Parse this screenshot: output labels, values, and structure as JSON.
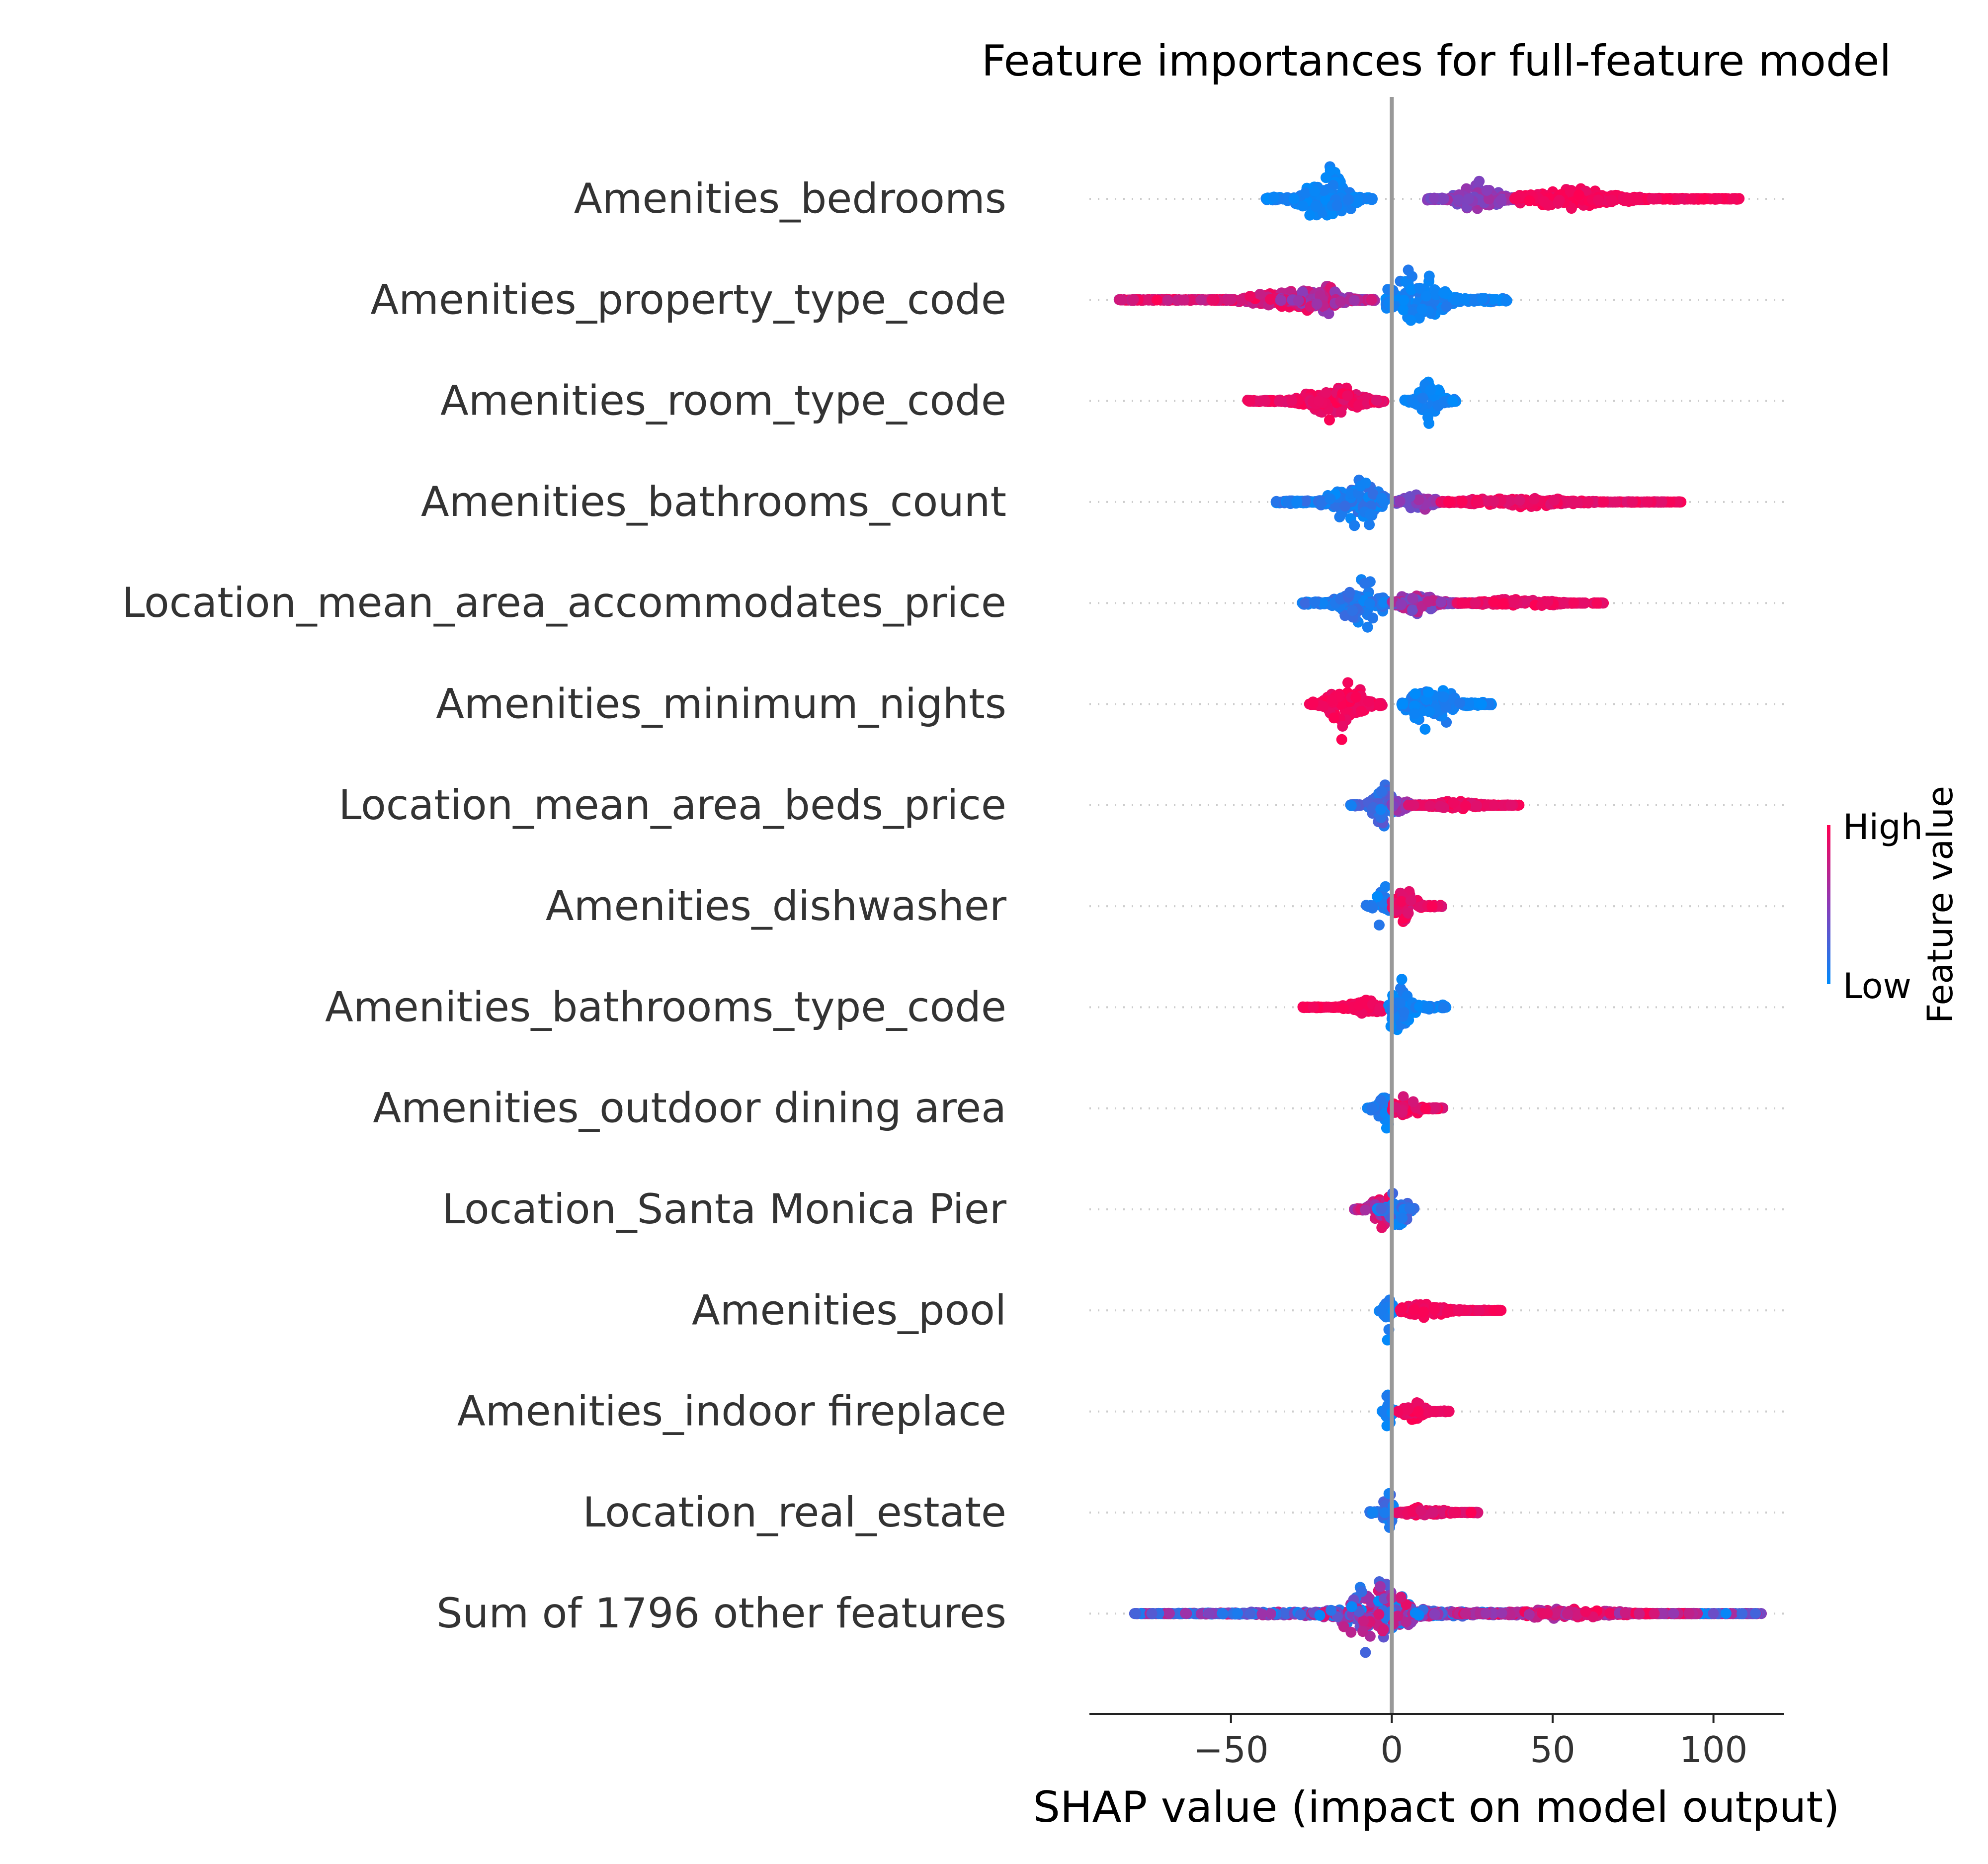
{
  "chart_data": {
    "type": "scatter",
    "subtype": "shap-beeswarm",
    "title": "Feature importances for full-feature model",
    "xlabel": "SHAP value (impact on model output)",
    "xlim": [
      -94,
      122
    ],
    "xticks": [
      {
        "value": -50,
        "label": "−50"
      },
      {
        "value": 0,
        "label": "0"
      },
      {
        "value": 50,
        "label": "50"
      },
      {
        "value": 100,
        "label": "100"
      }
    ],
    "zero_line": 0,
    "colorbar": {
      "title": "Feature value",
      "high_label": "High",
      "low_label": "Low",
      "low_color": "#008bfb",
      "mid_color": "#8b3bb8",
      "high_color": "#ff0052"
    },
    "features": [
      {
        "name": "Amenities_bedrooms",
        "clusters": [
          {
            "min": -40,
            "max": -6,
            "center": -20,
            "spread": 0.8,
            "value": 0.05,
            "vspread": 0.05
          },
          {
            "min": 11,
            "max": 40,
            "center": 27,
            "spread": 0.55,
            "value": 0.5,
            "vspread": 0.12
          },
          {
            "min": 38,
            "max": 108,
            "center": 55,
            "spread": 0.3,
            "value": 0.95,
            "vspread": 0.05
          }
        ]
      },
      {
        "name": "Amenities_property_type_code",
        "clusters": [
          {
            "min": -85,
            "max": -20,
            "center": -30,
            "spread": 0.3,
            "value": 0.85,
            "vspread": 0.15
          },
          {
            "min": -35,
            "max": -5,
            "center": -22,
            "spread": 0.55,
            "value": 0.7,
            "vspread": 0.25
          },
          {
            "min": -2,
            "max": 36,
            "center": 8,
            "spread": 0.9,
            "value": 0.06,
            "vspread": 0.06
          }
        ]
      },
      {
        "name": "Amenities_room_type_code",
        "clusters": [
          {
            "min": -45,
            "max": -2,
            "center": -18,
            "spread": 0.5,
            "value": 0.92,
            "vspread": 0.08
          },
          {
            "min": 4,
            "max": 20,
            "center": 12,
            "spread": 0.95,
            "value": 0.05,
            "vspread": 0.05
          }
        ]
      },
      {
        "name": "Amenities_bathrooms_count",
        "clusters": [
          {
            "min": -36,
            "max": -1,
            "center": -10,
            "spread": 0.85,
            "value": 0.1,
            "vspread": 0.1
          },
          {
            "min": 1,
            "max": 25,
            "center": 8,
            "spread": 0.3,
            "value": 0.5,
            "vspread": 0.15
          },
          {
            "min": 15,
            "max": 90,
            "center": 40,
            "spread": 0.15,
            "value": 0.92,
            "vspread": 0.08
          }
        ]
      },
      {
        "name": "Location_mean_area_accommodates_price",
        "clusters": [
          {
            "min": -28,
            "max": 0,
            "center": -10,
            "spread": 0.85,
            "value": 0.12,
            "vspread": 0.1
          },
          {
            "min": 0,
            "max": 30,
            "center": 8,
            "spread": 0.3,
            "value": 0.55,
            "vspread": 0.2
          },
          {
            "min": 20,
            "max": 66,
            "center": 40,
            "spread": 0.15,
            "value": 0.92,
            "vspread": 0.08
          }
        ]
      },
      {
        "name": "Amenities_minimum_nights",
        "clusters": [
          {
            "min": -26,
            "max": -3,
            "center": -14,
            "spread": 1.0,
            "value": 0.95,
            "vspread": 0.05
          },
          {
            "min": 3,
            "max": 31,
            "center": 12,
            "spread": 0.85,
            "value": 0.06,
            "vspread": 0.06
          }
        ]
      },
      {
        "name": "Location_mean_area_beds_price",
        "clusters": [
          {
            "min": -13,
            "max": 2,
            "center": -3,
            "spread": 0.75,
            "value": 0.2,
            "vspread": 0.15
          },
          {
            "min": 0,
            "max": 10,
            "center": 3,
            "spread": 0.25,
            "value": 0.55,
            "vspread": 0.15
          },
          {
            "min": 5,
            "max": 40,
            "center": 20,
            "spread": 0.12,
            "value": 0.92,
            "vspread": 0.08
          }
        ]
      },
      {
        "name": "Amenities_dishwasher",
        "clusters": [
          {
            "min": -8,
            "max": 0,
            "center": -3,
            "spread": 0.85,
            "value": 0.08,
            "vspread": 0.08
          },
          {
            "min": 0,
            "max": 16,
            "center": 4,
            "spread": 0.6,
            "value": 0.9,
            "vspread": 0.1
          }
        ]
      },
      {
        "name": "Amenities_bathrooms_type_code",
        "clusters": [
          {
            "min": -28,
            "max": -2,
            "center": -8,
            "spread": 0.25,
            "value": 0.95,
            "vspread": 0.05
          },
          {
            "min": -1,
            "max": 17,
            "center": 2,
            "spread": 0.9,
            "value": 0.06,
            "vspread": 0.06
          }
        ]
      },
      {
        "name": "Amenities_outdoor dining area",
        "clusters": [
          {
            "min": -8,
            "max": 0,
            "center": -2,
            "spread": 0.85,
            "value": 0.08,
            "vspread": 0.08
          },
          {
            "min": 0,
            "max": 16,
            "center": 4,
            "spread": 0.45,
            "value": 0.9,
            "vspread": 0.1
          }
        ]
      },
      {
        "name": "Location_Santa Monica Pier",
        "clusters": [
          {
            "min": -12,
            "max": 3,
            "center": -3,
            "spread": 0.6,
            "value": 0.75,
            "vspread": 0.2
          },
          {
            "min": -5,
            "max": 7,
            "center": 2,
            "spread": 0.8,
            "value": 0.15,
            "vspread": 0.15
          }
        ]
      },
      {
        "name": "Amenities_pool",
        "clusters": [
          {
            "min": -4,
            "max": 1,
            "center": -1,
            "spread": 0.85,
            "value": 0.06,
            "vspread": 0.06
          },
          {
            "min": 2,
            "max": 34,
            "center": 10,
            "spread": 0.25,
            "value": 0.93,
            "vspread": 0.07
          }
        ]
      },
      {
        "name": "Amenities_indoor fireplace",
        "clusters": [
          {
            "min": -3,
            "max": 1,
            "center": -1,
            "spread": 0.9,
            "value": 0.06,
            "vspread": 0.06
          },
          {
            "min": 2,
            "max": 18,
            "center": 7,
            "spread": 0.3,
            "value": 0.93,
            "vspread": 0.07
          }
        ]
      },
      {
        "name": "Location_real_estate",
        "clusters": [
          {
            "min": -7,
            "max": 1,
            "center": -1,
            "spread": 0.85,
            "value": 0.15,
            "vspread": 0.12
          },
          {
            "min": 1,
            "max": 27,
            "center": 10,
            "spread": 0.2,
            "value": 0.9,
            "vspread": 0.1
          }
        ]
      },
      {
        "name": "Sum of 1796 other features",
        "clusters": [
          {
            "min": -80,
            "max": 115,
            "center": -2,
            "spread": 0.1,
            "value": 0.4,
            "vspread": 0.4
          },
          {
            "min": -25,
            "max": 22,
            "center": -5,
            "spread": 1.0,
            "value": 0.45,
            "vspread": 0.45
          },
          {
            "min": 20,
            "max": 95,
            "center": 55,
            "spread": 0.15,
            "value": 0.75,
            "vspread": 0.25
          }
        ]
      }
    ]
  }
}
